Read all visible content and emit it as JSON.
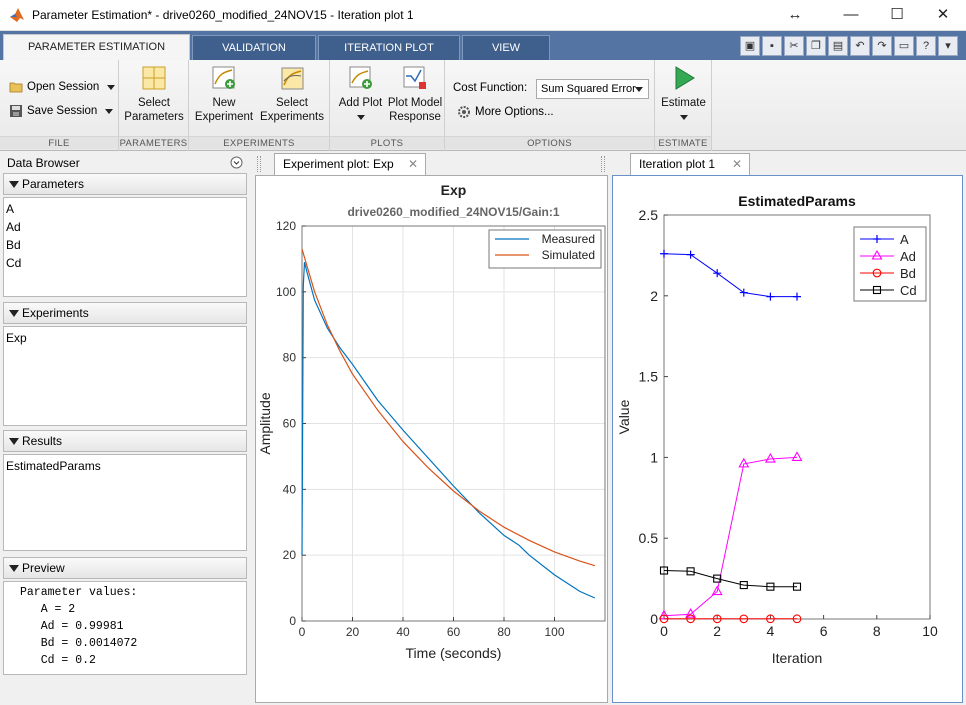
{
  "window": {
    "title": "Parameter Estimation* - drive0260_modified_24NOV15 - Iteration plot 1",
    "controls": {
      "resize": "↔",
      "minimize": "—",
      "maximize": "☐",
      "close": "✕"
    }
  },
  "tabs": [
    {
      "label": "PARAMETER ESTIMATION",
      "active": true
    },
    {
      "label": "VALIDATION",
      "active": false
    },
    {
      "label": "ITERATION PLOT",
      "active": false
    },
    {
      "label": "VIEW",
      "active": false
    }
  ],
  "toolstrip": {
    "file": {
      "label": "FILE",
      "open_session": "Open Session",
      "save_session": "Save Session"
    },
    "parameters": {
      "label": "PARAMETERS",
      "select_parameters": [
        "Select",
        "Parameters"
      ]
    },
    "experiments": {
      "label": "EXPERIMENTS",
      "new_experiment": [
        "New",
        "Experiment"
      ],
      "select_experiments": [
        "Select",
        "Experiments"
      ]
    },
    "plots": {
      "label": "PLOTS",
      "add_plot": "Add Plot",
      "plot_model_response": [
        "Plot Model",
        "Response"
      ]
    },
    "options": {
      "label": "OPTIONS",
      "cost_function_label": "Cost Function:",
      "cost_function_value": "Sum Squared Error",
      "more_options": "More Options..."
    },
    "estimate": {
      "label": "ESTIMATE",
      "estimate_button": "Estimate"
    }
  },
  "data_browser": {
    "title": "Data Browser",
    "sections": {
      "parameters": {
        "title": "Parameters",
        "items": [
          "A",
          "Ad",
          "Bd",
          "Cd"
        ]
      },
      "experiments": {
        "title": "Experiments",
        "items": [
          "Exp"
        ]
      },
      "results": {
        "title": "Results",
        "items": [
          "EstimatedParams"
        ]
      },
      "preview": {
        "title": "Preview",
        "lines": [
          "Parameter values:",
          "   A = 2",
          "   Ad = 0.99981",
          "   Bd = 0.0014072",
          "   Cd = 0.2"
        ]
      }
    }
  },
  "experiment_plot": {
    "tab_label": "Experiment plot: Exp",
    "close": "✕",
    "chart_data": {
      "type": "line",
      "title": "Exp",
      "subtitle": "drive0260_modified_24NOV15/Gain:1",
      "xlabel": "Time (seconds)",
      "ylabel": "Amplitude",
      "xlim": [
        0,
        120
      ],
      "ylim": [
        0,
        120
      ],
      "xticks": [
        0,
        20,
        40,
        60,
        80,
        100
      ],
      "yticks": [
        0,
        20,
        40,
        60,
        80,
        100,
        120
      ],
      "grid": true,
      "legend": "top-right",
      "series": [
        {
          "name": "Measured",
          "color": "#0072bd",
          "x": [
            0,
            0.5,
            1,
            2,
            5,
            10,
            15,
            20,
            25,
            30,
            40,
            50,
            60,
            70,
            80,
            86,
            90,
            100,
            110,
            116
          ],
          "y": [
            20,
            102,
            109,
            106,
            97.5,
            89,
            83,
            78,
            72.5,
            67,
            58,
            49.5,
            41,
            33,
            26,
            23,
            20,
            14,
            9,
            7
          ]
        },
        {
          "name": "Simulated",
          "color": "#d95319",
          "x": [
            0,
            5,
            10,
            15,
            20,
            30,
            40,
            50,
            60,
            70,
            80,
            90,
            100,
            110,
            116
          ],
          "y": [
            113,
            100,
            90,
            82,
            75,
            64,
            54.5,
            46.5,
            39.5,
            33.5,
            28.5,
            24.5,
            21,
            18.2,
            16.8
          ]
        }
      ]
    }
  },
  "iteration_plot": {
    "tab_label": "Iteration plot 1",
    "close": "✕",
    "chart_data": {
      "type": "line",
      "title": "EstimatedParams",
      "xlabel": "Iteration",
      "ylabel": "Value",
      "xlim": [
        0,
        10
      ],
      "ylim": [
        0,
        2.5
      ],
      "xticks": [
        0,
        2,
        4,
        6,
        8,
        10
      ],
      "yticks": [
        0,
        0.5,
        1,
        1.5,
        2,
        2.5
      ],
      "grid": false,
      "legend": "top-right",
      "x": [
        0,
        1,
        2,
        3,
        4,
        5
      ],
      "series": [
        {
          "name": "A",
          "color": "#0000ff",
          "marker": "plus",
          "values": [
            2.26,
            2.255,
            2.14,
            2.02,
            1.995,
            1.995
          ]
        },
        {
          "name": "Ad",
          "color": "#ff00ff",
          "marker": "triangle",
          "values": [
            0.02,
            0.03,
            0.17,
            0.96,
            0.99,
            1.0
          ]
        },
        {
          "name": "Bd",
          "color": "#ff0000",
          "marker": "circle",
          "values": [
            0.001,
            0.001,
            0.001,
            0.001,
            0.0014,
            0.0014
          ]
        },
        {
          "name": "Cd",
          "color": "#000000",
          "marker": "square",
          "values": [
            0.3,
            0.295,
            0.25,
            0.21,
            0.2,
            0.2
          ]
        }
      ]
    }
  }
}
